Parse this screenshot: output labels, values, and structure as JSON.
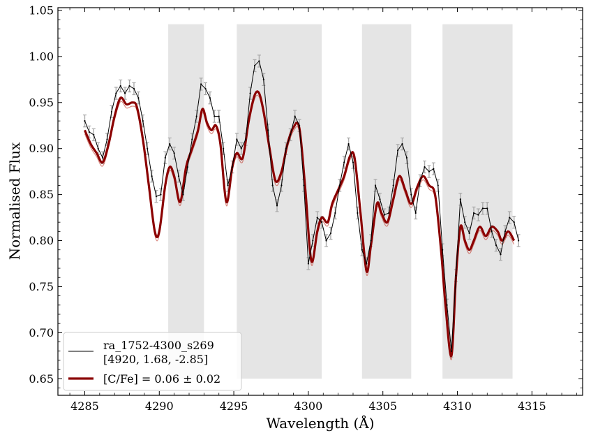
{
  "chart_data": {
    "type": "line",
    "xlabel": "Wavelength (Å)",
    "ylabel": "Normalised Flux",
    "xlim": [
      4283.2,
      4318.4
    ],
    "ylim": [
      0.632,
      1.053
    ],
    "x_ticks": [
      4285,
      4290,
      4295,
      4300,
      4305,
      4310,
      4315
    ],
    "x_tick_labels": [
      "4285",
      "4290",
      "4295",
      "4300",
      "4305",
      "4310",
      "4315"
    ],
    "y_ticks": [
      0.65,
      0.7,
      0.75,
      0.8,
      0.85,
      0.9,
      0.95,
      1.0,
      1.05
    ],
    "y_tick_labels": [
      "0.65",
      "0.70",
      "0.75",
      "0.80",
      "0.85",
      "0.90",
      "0.95",
      "1.00",
      "1.05"
    ],
    "shaded_regions": [
      {
        "x0": 4290.6,
        "x1": 4293.0,
        "y0": 0.65,
        "y1": 1.035
      },
      {
        "x0": 4295.2,
        "x1": 4300.9,
        "y0": 0.65,
        "y1": 1.035
      },
      {
        "x0": 4303.6,
        "x1": 4306.9,
        "y0": 0.65,
        "y1": 1.035
      },
      {
        "x0": 4309.0,
        "x1": 4313.7,
        "y0": 0.65,
        "y1": 1.035
      }
    ],
    "series": [
      {
        "name": "ra_1752-4300_s269",
        "role": "observed",
        "color": "#000000",
        "errorbar_color": "#aaaaaa",
        "points": [
          [
            4285.0,
            0.93
          ],
          [
            4285.3,
            0.918
          ],
          [
            4285.6,
            0.915
          ],
          [
            4285.9,
            0.9
          ],
          [
            4286.2,
            0.89
          ],
          [
            4286.5,
            0.91
          ],
          [
            4286.8,
            0.94
          ],
          [
            4287.1,
            0.96
          ],
          [
            4287.4,
            0.968
          ],
          [
            4287.7,
            0.96
          ],
          [
            4288.0,
            0.968
          ],
          [
            4288.3,
            0.965
          ],
          [
            4288.6,
            0.955
          ],
          [
            4288.9,
            0.93
          ],
          [
            4289.2,
            0.9
          ],
          [
            4289.5,
            0.87
          ],
          [
            4289.8,
            0.848
          ],
          [
            4290.1,
            0.85
          ],
          [
            4290.4,
            0.89
          ],
          [
            4290.7,
            0.905
          ],
          [
            4291.0,
            0.895
          ],
          [
            4291.3,
            0.87
          ],
          [
            4291.6,
            0.85
          ],
          [
            4291.9,
            0.88
          ],
          [
            4292.2,
            0.91
          ],
          [
            4292.5,
            0.935
          ],
          [
            4292.8,
            0.97
          ],
          [
            4293.1,
            0.965
          ],
          [
            4293.4,
            0.955
          ],
          [
            4293.7,
            0.935
          ],
          [
            4294.0,
            0.935
          ],
          [
            4294.3,
            0.9
          ],
          [
            4294.6,
            0.86
          ],
          [
            4294.9,
            0.88
          ],
          [
            4295.2,
            0.91
          ],
          [
            4295.5,
            0.9
          ],
          [
            4295.8,
            0.91
          ],
          [
            4296.1,
            0.96
          ],
          [
            4296.4,
            0.99
          ],
          [
            4296.7,
            0.995
          ],
          [
            4297.0,
            0.975
          ],
          [
            4297.3,
            0.92
          ],
          [
            4297.6,
            0.86
          ],
          [
            4297.9,
            0.838
          ],
          [
            4298.2,
            0.86
          ],
          [
            4298.5,
            0.9
          ],
          [
            4298.8,
            0.915
          ],
          [
            4299.1,
            0.935
          ],
          [
            4299.4,
            0.925
          ],
          [
            4299.7,
            0.86
          ],
          [
            4300.0,
            0.775
          ],
          [
            4300.3,
            0.8
          ],
          [
            4300.6,
            0.825
          ],
          [
            4300.9,
            0.82
          ],
          [
            4301.2,
            0.8
          ],
          [
            4301.5,
            0.808
          ],
          [
            4301.8,
            0.83
          ],
          [
            4302.1,
            0.86
          ],
          [
            4302.4,
            0.885
          ],
          [
            4302.7,
            0.905
          ],
          [
            4303.0,
            0.885
          ],
          [
            4303.3,
            0.83
          ],
          [
            4303.6,
            0.79
          ],
          [
            4303.9,
            0.775
          ],
          [
            4304.2,
            0.8
          ],
          [
            4304.5,
            0.86
          ],
          [
            4304.8,
            0.845
          ],
          [
            4305.1,
            0.828
          ],
          [
            4305.4,
            0.83
          ],
          [
            4305.7,
            0.86
          ],
          [
            4306.0,
            0.898
          ],
          [
            4306.3,
            0.905
          ],
          [
            4306.6,
            0.89
          ],
          [
            4306.9,
            0.85
          ],
          [
            4307.2,
            0.83
          ],
          [
            4307.5,
            0.865
          ],
          [
            4307.8,
            0.88
          ],
          [
            4308.1,
            0.875
          ],
          [
            4308.4,
            0.878
          ],
          [
            4308.7,
            0.86
          ],
          [
            4309.0,
            0.79
          ],
          [
            4309.3,
            0.73
          ],
          [
            4309.6,
            0.68
          ],
          [
            4309.9,
            0.762
          ],
          [
            4310.2,
            0.845
          ],
          [
            4310.5,
            0.82
          ],
          [
            4310.8,
            0.808
          ],
          [
            4311.1,
            0.83
          ],
          [
            4311.4,
            0.828
          ],
          [
            4311.7,
            0.835
          ],
          [
            4312.0,
            0.835
          ],
          [
            4312.3,
            0.81
          ],
          [
            4312.6,
            0.795
          ],
          [
            4312.9,
            0.785
          ],
          [
            4313.2,
            0.81
          ],
          [
            4313.5,
            0.825
          ],
          [
            4313.8,
            0.82
          ],
          [
            4314.1,
            0.8
          ]
        ]
      },
      {
        "name": "[C/Fe] = 0.06 ± 0.02",
        "role": "model",
        "color": "#8b0000",
        "points": [
          [
            4285.0,
            0.92
          ],
          [
            4285.4,
            0.905
          ],
          [
            4285.8,
            0.895
          ],
          [
            4286.2,
            0.885
          ],
          [
            4286.6,
            0.905
          ],
          [
            4287.0,
            0.935
          ],
          [
            4287.4,
            0.955
          ],
          [
            4287.8,
            0.948
          ],
          [
            4288.2,
            0.95
          ],
          [
            4288.5,
            0.945
          ],
          [
            4288.9,
            0.91
          ],
          [
            4289.3,
            0.86
          ],
          [
            4289.7,
            0.81
          ],
          [
            4290.0,
            0.81
          ],
          [
            4290.4,
            0.86
          ],
          [
            4290.7,
            0.88
          ],
          [
            4291.0,
            0.87
          ],
          [
            4291.4,
            0.842
          ],
          [
            4291.8,
            0.88
          ],
          [
            4292.2,
            0.9
          ],
          [
            4292.6,
            0.92
          ],
          [
            4292.9,
            0.943
          ],
          [
            4293.2,
            0.928
          ],
          [
            4293.5,
            0.92
          ],
          [
            4293.8,
            0.925
          ],
          [
            4294.1,
            0.905
          ],
          [
            4294.5,
            0.842
          ],
          [
            4294.9,
            0.88
          ],
          [
            4295.2,
            0.895
          ],
          [
            4295.6,
            0.89
          ],
          [
            4296.0,
            0.93
          ],
          [
            4296.4,
            0.958
          ],
          [
            4296.7,
            0.96
          ],
          [
            4297.0,
            0.94
          ],
          [
            4297.4,
            0.9
          ],
          [
            4297.8,
            0.865
          ],
          [
            4298.2,
            0.875
          ],
          [
            4298.6,
            0.905
          ],
          [
            4299.0,
            0.923
          ],
          [
            4299.4,
            0.922
          ],
          [
            4299.8,
            0.855
          ],
          [
            4300.2,
            0.778
          ],
          [
            4300.6,
            0.81
          ],
          [
            4300.9,
            0.825
          ],
          [
            4301.3,
            0.82
          ],
          [
            4301.6,
            0.84
          ],
          [
            4302.0,
            0.855
          ],
          [
            4302.4,
            0.87
          ],
          [
            4302.8,
            0.892
          ],
          [
            4303.1,
            0.89
          ],
          [
            4303.5,
            0.83
          ],
          [
            4303.9,
            0.767
          ],
          [
            4304.2,
            0.795
          ],
          [
            4304.6,
            0.84
          ],
          [
            4304.9,
            0.83
          ],
          [
            4305.3,
            0.82
          ],
          [
            4305.7,
            0.845
          ],
          [
            4306.1,
            0.87
          ],
          [
            4306.5,
            0.855
          ],
          [
            4306.9,
            0.84
          ],
          [
            4307.3,
            0.858
          ],
          [
            4307.7,
            0.87
          ],
          [
            4308.1,
            0.86
          ],
          [
            4308.5,
            0.85
          ],
          [
            4308.9,
            0.79
          ],
          [
            4309.2,
            0.73
          ],
          [
            4309.6,
            0.675
          ],
          [
            4309.9,
            0.76
          ],
          [
            4310.2,
            0.815
          ],
          [
            4310.5,
            0.8
          ],
          [
            4310.8,
            0.79
          ],
          [
            4311.1,
            0.8
          ],
          [
            4311.5,
            0.815
          ],
          [
            4311.9,
            0.805
          ],
          [
            4312.3,
            0.815
          ],
          [
            4312.7,
            0.81
          ],
          [
            4313.0,
            0.8
          ],
          [
            4313.4,
            0.81
          ],
          [
            4313.8,
            0.8
          ]
        ]
      }
    ],
    "legend": {
      "position": "bottom-left",
      "entries": [
        {
          "label_lines": [
            "ra_1752-4300_s269",
            "[4920, 1.68, -2.85]"
          ],
          "color": "#000000",
          "style": "thin"
        },
        {
          "label_lines": [
            "[C/Fe] = 0.06 ± 0.02"
          ],
          "color": "#8b0000",
          "style": "thick"
        }
      ]
    }
  }
}
